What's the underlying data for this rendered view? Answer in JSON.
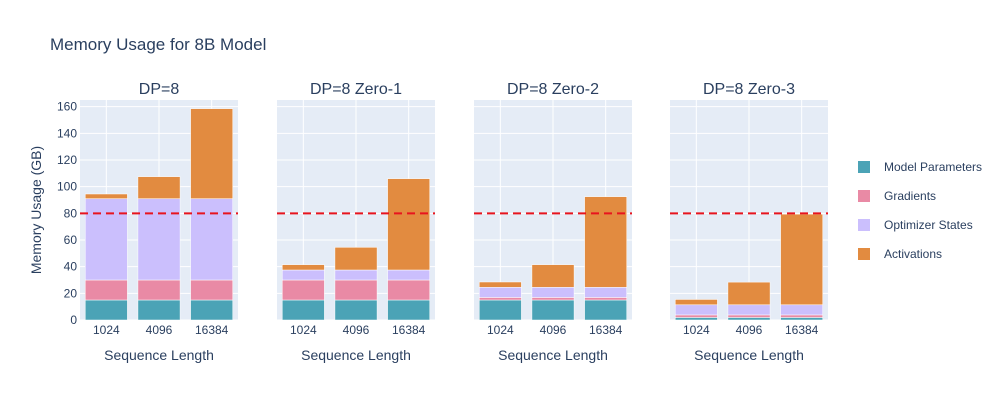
{
  "chart_data": {
    "type": "bar",
    "stacked": true,
    "title": "Memory Usage for 8B Model",
    "ylabel": "Memory Usage (GB)",
    "xlabel": "Sequence Length",
    "ylim": [
      0,
      165
    ],
    "yticks": [
      0,
      20,
      40,
      60,
      80,
      100,
      120,
      140,
      160
    ],
    "grid": true,
    "legend_position": "right",
    "threshold": {
      "value": 80,
      "color": "#e8141e",
      "style": "dashed"
    },
    "series_meta": [
      {
        "name": "Model Parameters",
        "color": "#4ba3b6"
      },
      {
        "name": "Gradients",
        "color": "#e98aa5"
      },
      {
        "name": "Optimizer States",
        "color": "#cbbffd"
      },
      {
        "name": "Activations",
        "color": "#e28b40"
      }
    ],
    "panels": [
      {
        "title": "DP=8",
        "categories": [
          "1024",
          "4096",
          "16384"
        ],
        "stacks": [
          [
            15,
            15,
            61,
            3.5
          ],
          [
            15,
            15,
            61,
            16.5
          ],
          [
            15,
            15,
            61,
            67.5
          ]
        ]
      },
      {
        "title": "DP=8 Zero-1",
        "categories": [
          "1024",
          "4096",
          "16384"
        ],
        "stacks": [
          [
            15,
            15,
            7.5,
            4
          ],
          [
            15,
            15,
            7.5,
            17
          ],
          [
            15,
            15,
            7.5,
            68.5
          ]
        ]
      },
      {
        "title": "DP=8 Zero-2",
        "categories": [
          "1024",
          "4096",
          "16384"
        ],
        "stacks": [
          [
            15,
            1.9,
            7.6,
            4
          ],
          [
            15,
            1.9,
            7.6,
            17
          ],
          [
            15,
            1.9,
            7.6,
            68
          ]
        ]
      },
      {
        "title": "DP=8 Zero-3",
        "categories": [
          "1024",
          "4096",
          "16384"
        ],
        "stacks": [
          [
            1.9,
            1.9,
            7.6,
            4
          ],
          [
            1.9,
            1.9,
            7.6,
            17
          ],
          [
            1.9,
            1.9,
            7.6,
            68
          ]
        ]
      }
    ]
  }
}
